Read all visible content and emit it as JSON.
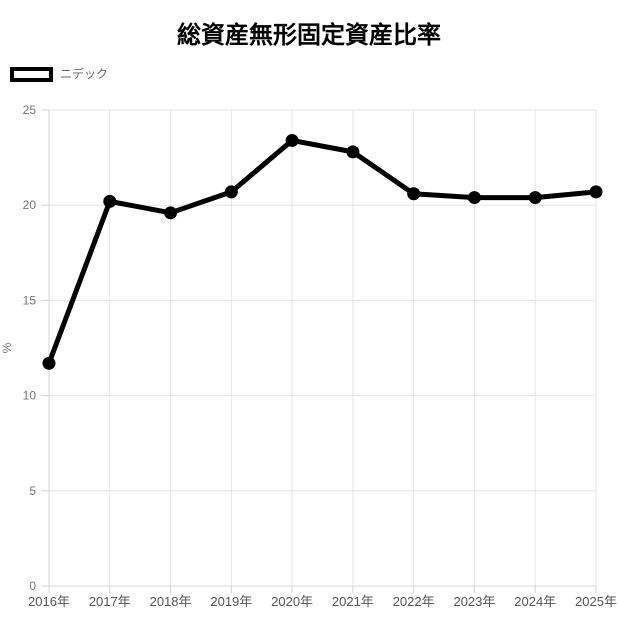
{
  "title": "総資産無形固定資産比率",
  "legend": {
    "items": [
      {
        "label": "ニデック",
        "swatch_border": "#000000",
        "swatch_fill": "#ffffff"
      }
    ]
  },
  "chart_data": {
    "type": "line",
    "title": "総資産無形固定資産比率",
    "x": [
      "2016年",
      "2017年",
      "2018年",
      "2019年",
      "2020年",
      "2021年",
      "2022年",
      "2023年",
      "2024年",
      "2025年"
    ],
    "series": [
      {
        "name": "ニデック",
        "color": "#000000",
        "values": [
          11.7,
          20.2,
          19.6,
          20.7,
          23.4,
          22.8,
          20.6,
          20.4,
          20.4,
          20.7
        ]
      }
    ],
    "xlabel": "",
    "ylabel": "%",
    "ylim": [
      0,
      25
    ],
    "yticks": [
      0,
      5,
      10,
      15,
      20,
      25
    ],
    "grid": true,
    "legend_position": "top-left",
    "marker": "circle",
    "line_width": 5,
    "marker_radius": 6.5
  },
  "colors": {
    "line": "#000000",
    "grid": "#e6e6e6",
    "axis": "#d4d4d4",
    "y_tick_text": "#757575",
    "x_tick_text": "#555555",
    "legend_text": "#666666",
    "title_text": "#000000",
    "background": "#ffffff"
  }
}
